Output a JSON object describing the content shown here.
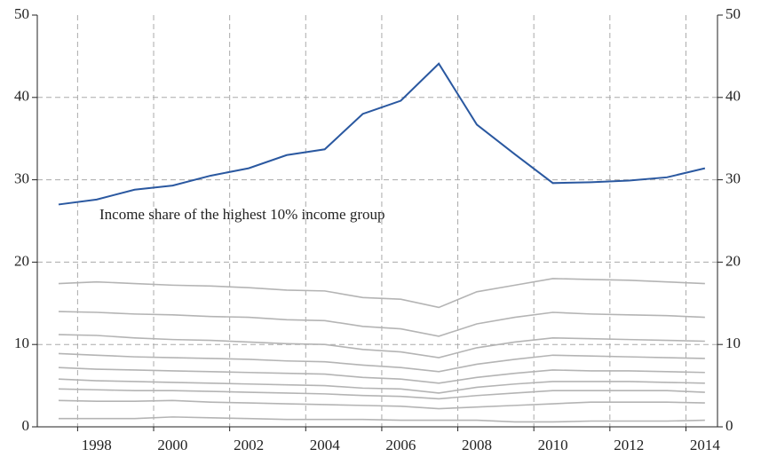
{
  "chart_data": {
    "type": "line",
    "annotation": "Income share of the highest 10% income group",
    "x": [
      1997,
      1998,
      1999,
      2000,
      2001,
      2002,
      2003,
      2004,
      2005,
      2006,
      2007,
      2008,
      2009,
      2010,
      2011,
      2012,
      2013,
      2014
    ],
    "xlim": [
      1996.44,
      2014.33
    ],
    "xticks": [
      1998,
      2000,
      2002,
      2004,
      2006,
      2008,
      2010,
      2012,
      2014
    ],
    "xgrid": [
      1997.5,
      1999.5,
      2001.5,
      2003.5,
      2005.5,
      2007.5,
      2009.5,
      2011.5,
      2013.5
    ],
    "ylim": [
      0,
      50
    ],
    "yticks": [
      0,
      10,
      20,
      30,
      40,
      50
    ],
    "y2lim": [
      0,
      50
    ],
    "y2ticks": [
      0,
      10,
      20,
      30,
      40,
      50
    ],
    "grid": true,
    "series": [
      {
        "color": "#2a58a0",
        "values": [
          27.0,
          27.6,
          28.8,
          29.3,
          30.5,
          31.4,
          33.0,
          33.7,
          38.0,
          39.6,
          44.1,
          36.7,
          33.1,
          29.6,
          29.7,
          29.9,
          30.3,
          31.4
        ]
      },
      {
        "color": "#b4b4b4",
        "values": [
          17.4,
          17.6,
          17.4,
          17.2,
          17.1,
          16.9,
          16.6,
          16.5,
          15.7,
          15.5,
          14.5,
          16.4,
          17.2,
          18.0,
          17.9,
          17.8,
          17.6,
          17.4
        ]
      },
      {
        "color": "#b4b4b4",
        "values": [
          14.0,
          13.9,
          13.7,
          13.6,
          13.4,
          13.3,
          13.0,
          12.9,
          12.2,
          11.9,
          11.0,
          12.5,
          13.3,
          13.9,
          13.7,
          13.6,
          13.5,
          13.3
        ]
      },
      {
        "color": "#b4b4b4",
        "values": [
          11.2,
          11.1,
          10.8,
          10.6,
          10.5,
          10.3,
          10.1,
          10.0,
          9.4,
          9.1,
          8.4,
          9.6,
          10.3,
          10.8,
          10.7,
          10.6,
          10.5,
          10.4
        ]
      },
      {
        "color": "#b4b4b4",
        "values": [
          8.9,
          8.7,
          8.5,
          8.4,
          8.3,
          8.2,
          8.0,
          7.9,
          7.5,
          7.2,
          6.7,
          7.6,
          8.2,
          8.7,
          8.6,
          8.5,
          8.4,
          8.3
        ]
      },
      {
        "color": "#b4b4b4",
        "values": [
          7.2,
          7.0,
          6.9,
          6.8,
          6.7,
          6.6,
          6.5,
          6.4,
          6.0,
          5.8,
          5.3,
          6.0,
          6.5,
          6.9,
          6.8,
          6.8,
          6.7,
          6.6
        ]
      },
      {
        "color": "#b4b4b4",
        "values": [
          5.8,
          5.6,
          5.5,
          5.4,
          5.3,
          5.2,
          5.1,
          5.0,
          4.7,
          4.6,
          4.1,
          4.8,
          5.2,
          5.5,
          5.5,
          5.5,
          5.4,
          5.3
        ]
      },
      {
        "color": "#b4b4b4",
        "values": [
          4.6,
          4.5,
          4.4,
          4.4,
          4.3,
          4.2,
          4.1,
          4.0,
          3.8,
          3.7,
          3.4,
          3.8,
          4.1,
          4.4,
          4.4,
          4.4,
          4.4,
          4.2
        ]
      },
      {
        "color": "#b4b4b4",
        "values": [
          3.2,
          3.1,
          3.1,
          3.2,
          3.0,
          2.9,
          2.8,
          2.7,
          2.6,
          2.5,
          2.2,
          2.4,
          2.6,
          2.8,
          3.0,
          3.0,
          3.0,
          2.9
        ]
      },
      {
        "color": "#b4b4b4",
        "values": [
          1.0,
          1.0,
          1.0,
          1.2,
          1.1,
          1.0,
          0.9,
          0.9,
          0.9,
          0.8,
          0.8,
          0.8,
          0.6,
          0.6,
          0.7,
          0.7,
          0.7,
          0.8
        ]
      }
    ]
  }
}
